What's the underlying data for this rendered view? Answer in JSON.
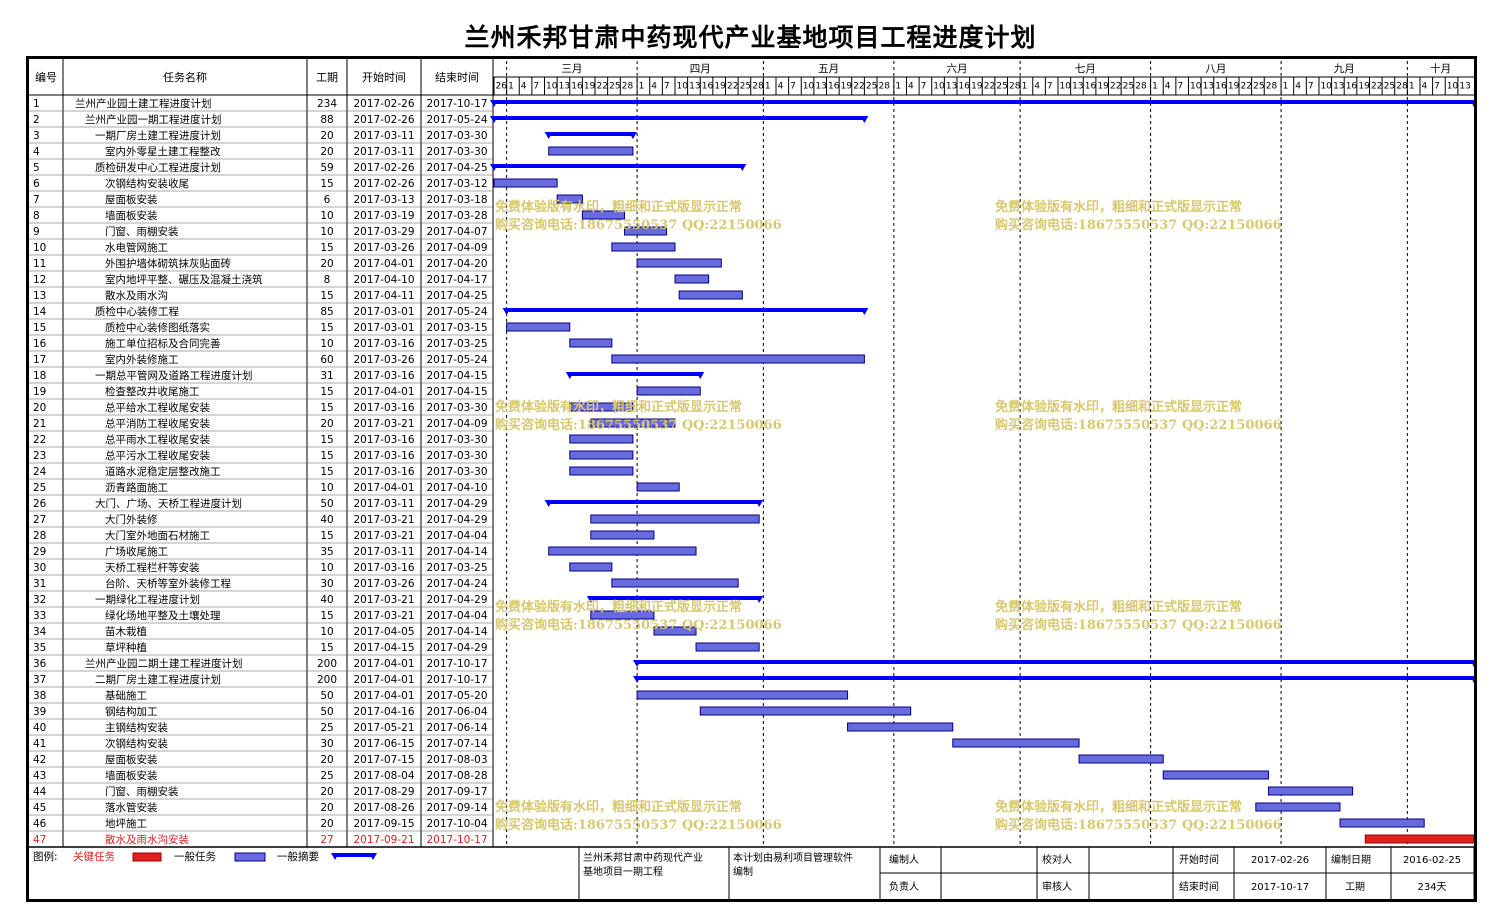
{
  "title": "兰州禾邦甘肃中药现代产业基地项目工程进度计划",
  "header": {
    "id": "编号",
    "name": "任务名称",
    "duration": "工期",
    "start": "开始时间",
    "end": "结束时间"
  },
  "timeline": {
    "months": [
      "三月",
      "四月",
      "五月",
      "六月",
      "七月",
      "八月",
      "九月",
      "十月"
    ],
    "day_labels": [
      "26",
      "1",
      "4",
      "7",
      "10",
      "13",
      "16",
      "19",
      "22",
      "25",
      "28",
      "1",
      "4",
      "7",
      "10",
      "13",
      "16",
      "19",
      "22",
      "25",
      "28",
      "1",
      "4",
      "7",
      "10",
      "13",
      "16",
      "19",
      "22",
      "25",
      "28",
      "1",
      "4",
      "7",
      "10",
      "13",
      "16",
      "19",
      "22",
      "25",
      "28",
      "1",
      "4",
      "7",
      "10",
      "13",
      "16",
      "19",
      "22",
      "25",
      "28",
      "1",
      "4",
      "7",
      "10",
      "13",
      "16",
      "19",
      "22",
      "25",
      "28",
      "1",
      "4",
      "7",
      "10",
      "13",
      "16",
      "19",
      "22",
      "25",
      "28",
      "1",
      "4",
      "7",
      "10",
      "13"
    ]
  },
  "tasks": [
    {
      "id": "1",
      "name": "兰州产业园土建工程进度计划",
      "dur": "234",
      "start": "2017-02-26",
      "end": "2017-10-17",
      "type": "summary",
      "indent": 0
    },
    {
      "id": "2",
      "name": "兰州产业园一期工程进度计划",
      "dur": "88",
      "start": "2017-02-26",
      "end": "2017-05-24",
      "type": "summary",
      "indent": 1
    },
    {
      "id": "3",
      "name": "一期厂房土建工程进度计划",
      "dur": "20",
      "start": "2017-03-11",
      "end": "2017-03-30",
      "type": "summary",
      "indent": 2
    },
    {
      "id": "4",
      "name": "室内外零星土建工程整改",
      "dur": "20",
      "start": "2017-03-11",
      "end": "2017-03-30",
      "type": "task",
      "indent": 3
    },
    {
      "id": "5",
      "name": "质检研发中心工程进度计划",
      "dur": "59",
      "start": "2017-02-26",
      "end": "2017-04-25",
      "type": "summary",
      "indent": 2
    },
    {
      "id": "6",
      "name": "次钢结构安装收尾",
      "dur": "15",
      "start": "2017-02-26",
      "end": "2017-03-12",
      "type": "task",
      "indent": 3
    },
    {
      "id": "7",
      "name": "屋面板安装",
      "dur": "6",
      "start": "2017-03-13",
      "end": "2017-03-18",
      "type": "task",
      "indent": 3
    },
    {
      "id": "8",
      "name": "墙面板安装",
      "dur": "10",
      "start": "2017-03-19",
      "end": "2017-03-28",
      "type": "task",
      "indent": 3
    },
    {
      "id": "9",
      "name": "门窗、雨棚安装",
      "dur": "10",
      "start": "2017-03-29",
      "end": "2017-04-07",
      "type": "task",
      "indent": 3
    },
    {
      "id": "10",
      "name": "水电管网施工",
      "dur": "15",
      "start": "2017-03-26",
      "end": "2017-04-09",
      "type": "task",
      "indent": 3
    },
    {
      "id": "11",
      "name": "外围护墙体砌筑抹灰贴面砖",
      "dur": "20",
      "start": "2017-04-01",
      "end": "2017-04-20",
      "type": "task",
      "indent": 3
    },
    {
      "id": "12",
      "name": "室内地坪平整、碾压及混凝土浇筑",
      "dur": "8",
      "start": "2017-04-10",
      "end": "2017-04-17",
      "type": "task",
      "indent": 3
    },
    {
      "id": "13",
      "name": "散水及雨水沟",
      "dur": "15",
      "start": "2017-04-11",
      "end": "2017-04-25",
      "type": "task",
      "indent": 3
    },
    {
      "id": "14",
      "name": "质检中心装修工程",
      "dur": "85",
      "start": "2017-03-01",
      "end": "2017-05-24",
      "type": "summary",
      "indent": 2
    },
    {
      "id": "15",
      "name": "质检中心装修图纸落实",
      "dur": "15",
      "start": "2017-03-01",
      "end": "2017-03-15",
      "type": "task",
      "indent": 3
    },
    {
      "id": "16",
      "name": "施工单位招标及合同完善",
      "dur": "10",
      "start": "2017-03-16",
      "end": "2017-03-25",
      "type": "task",
      "indent": 3
    },
    {
      "id": "17",
      "name": "室内外装修施工",
      "dur": "60",
      "start": "2017-03-26",
      "end": "2017-05-24",
      "type": "task",
      "indent": 3
    },
    {
      "id": "18",
      "name": "一期总平管网及道路工程进度计划",
      "dur": "31",
      "start": "2017-03-16",
      "end": "2017-04-15",
      "type": "summary",
      "indent": 2
    },
    {
      "id": "19",
      "name": "检查整改井收尾施工",
      "dur": "15",
      "start": "2017-04-01",
      "end": "2017-04-15",
      "type": "task",
      "indent": 3
    },
    {
      "id": "20",
      "name": "总平给水工程收尾安装",
      "dur": "15",
      "start": "2017-03-16",
      "end": "2017-03-30",
      "type": "task",
      "indent": 3
    },
    {
      "id": "21",
      "name": "总平消防工程收尾安装",
      "dur": "20",
      "start": "2017-03-21",
      "end": "2017-04-09",
      "type": "task",
      "indent": 3
    },
    {
      "id": "22",
      "name": "总平雨水工程收尾安装",
      "dur": "15",
      "start": "2017-03-16",
      "end": "2017-03-30",
      "type": "task",
      "indent": 3
    },
    {
      "id": "23",
      "name": "总平污水工程收尾安装",
      "dur": "15",
      "start": "2017-03-16",
      "end": "2017-03-30",
      "type": "task",
      "indent": 3
    },
    {
      "id": "24",
      "name": "道路水泥稳定层整改施工",
      "dur": "15",
      "start": "2017-03-16",
      "end": "2017-03-30",
      "type": "task",
      "indent": 3
    },
    {
      "id": "25",
      "name": "沥青路面施工",
      "dur": "10",
      "start": "2017-04-01",
      "end": "2017-04-10",
      "type": "task",
      "indent": 3
    },
    {
      "id": "26",
      "name": "大门、广场、天桥工程进度计划",
      "dur": "50",
      "start": "2017-03-11",
      "end": "2017-04-29",
      "type": "summary",
      "indent": 2
    },
    {
      "id": "27",
      "name": "大门外装修",
      "dur": "40",
      "start": "2017-03-21",
      "end": "2017-04-29",
      "type": "task",
      "indent": 3
    },
    {
      "id": "28",
      "name": "大门室外地面石材施工",
      "dur": "15",
      "start": "2017-03-21",
      "end": "2017-04-04",
      "type": "task",
      "indent": 3
    },
    {
      "id": "29",
      "name": "广场收尾施工",
      "dur": "35",
      "start": "2017-03-11",
      "end": "2017-04-14",
      "type": "task",
      "indent": 3
    },
    {
      "id": "30",
      "name": "天桥工程栏杆等安装",
      "dur": "10",
      "start": "2017-03-16",
      "end": "2017-03-25",
      "type": "task",
      "indent": 3
    },
    {
      "id": "31",
      "name": "台阶、天桥等室外装修工程",
      "dur": "30",
      "start": "2017-03-26",
      "end": "2017-04-24",
      "type": "task",
      "indent": 3
    },
    {
      "id": "32",
      "name": "一期绿化工程进度计划",
      "dur": "40",
      "start": "2017-03-21",
      "end": "2017-04-29",
      "type": "summary",
      "indent": 2
    },
    {
      "id": "33",
      "name": "绿化场地平整及土壤处理",
      "dur": "15",
      "start": "2017-03-21",
      "end": "2017-04-04",
      "type": "task",
      "indent": 3
    },
    {
      "id": "34",
      "name": "苗木栽植",
      "dur": "10",
      "start": "2017-04-05",
      "end": "2017-04-14",
      "type": "task",
      "indent": 3
    },
    {
      "id": "35",
      "name": "草坪种植",
      "dur": "15",
      "start": "2017-04-15",
      "end": "2017-04-29",
      "type": "task",
      "indent": 3
    },
    {
      "id": "36",
      "name": "兰州产业园二期土建工程进度计划",
      "dur": "200",
      "start": "2017-04-01",
      "end": "2017-10-17",
      "type": "summary",
      "indent": 1
    },
    {
      "id": "37",
      "name": "二期厂房土建工程进度计划",
      "dur": "200",
      "start": "2017-04-01",
      "end": "2017-10-17",
      "type": "summary",
      "indent": 2
    },
    {
      "id": "38",
      "name": "基础施工",
      "dur": "50",
      "start": "2017-04-01",
      "end": "2017-05-20",
      "type": "task",
      "indent": 3
    },
    {
      "id": "39",
      "name": "钢结构加工",
      "dur": "50",
      "start": "2017-04-16",
      "end": "2017-06-04",
      "type": "task",
      "indent": 3
    },
    {
      "id": "40",
      "name": "主钢结构安装",
      "dur": "25",
      "start": "2017-05-21",
      "end": "2017-06-14",
      "type": "task",
      "indent": 3
    },
    {
      "id": "41",
      "name": "次钢结构安装",
      "dur": "30",
      "start": "2017-06-15",
      "end": "2017-07-14",
      "type": "task",
      "indent": 3
    },
    {
      "id": "42",
      "name": "屋面板安装",
      "dur": "20",
      "start": "2017-07-15",
      "end": "2017-08-03",
      "type": "task",
      "indent": 3
    },
    {
      "id": "43",
      "name": "墙面板安装",
      "dur": "25",
      "start": "2017-08-04",
      "end": "2017-08-28",
      "type": "task",
      "indent": 3
    },
    {
      "id": "44",
      "name": "门窗、雨棚安装",
      "dur": "20",
      "start": "2017-08-29",
      "end": "2017-09-17",
      "type": "task",
      "indent": 3
    },
    {
      "id": "45",
      "name": "落水管安装",
      "dur": "20",
      "start": "2017-08-26",
      "end": "2017-09-14",
      "type": "task",
      "indent": 3
    },
    {
      "id": "46",
      "name": "地坪施工",
      "dur": "20",
      "start": "2017-09-15",
      "end": "2017-10-04",
      "type": "task",
      "indent": 3
    },
    {
      "id": "47",
      "name": "散水及雨水沟安装",
      "dur": "27",
      "start": "2017-09-21",
      "end": "2017-10-17",
      "type": "critical",
      "indent": 3
    }
  ],
  "legend": {
    "label": "图例:",
    "critical": "关键任务",
    "normal": "一般任务",
    "summary": "一般摘要"
  },
  "footer": {
    "project": "兰州禾邦甘肃中药现代产业基地项目一期工程",
    "software": "本计划由易利项目管理软件编制",
    "editor_label": "编制人",
    "checker_label": "校对人",
    "owner_label": "负责人",
    "reviewer_label": "审核人",
    "start_label": "开始时间",
    "start_value": "2017-02-26",
    "end_label": "结束时间",
    "end_value": "2017-10-17",
    "date_label": "编制日期",
    "date_value": "2016-02-25",
    "duration_label": "工期",
    "duration_value": "234天"
  },
  "watermark": {
    "line1": "免费体验版有水印，粗细和正式版显示正常",
    "line2": "购买咨询电话:18675550537 QQ:22150066"
  },
  "colors": {
    "summary": "#0000ff",
    "task_fill": "#6a6ae0",
    "task_border": "#000080",
    "critical": "#e02020",
    "watermark": "#d8c870"
  }
}
